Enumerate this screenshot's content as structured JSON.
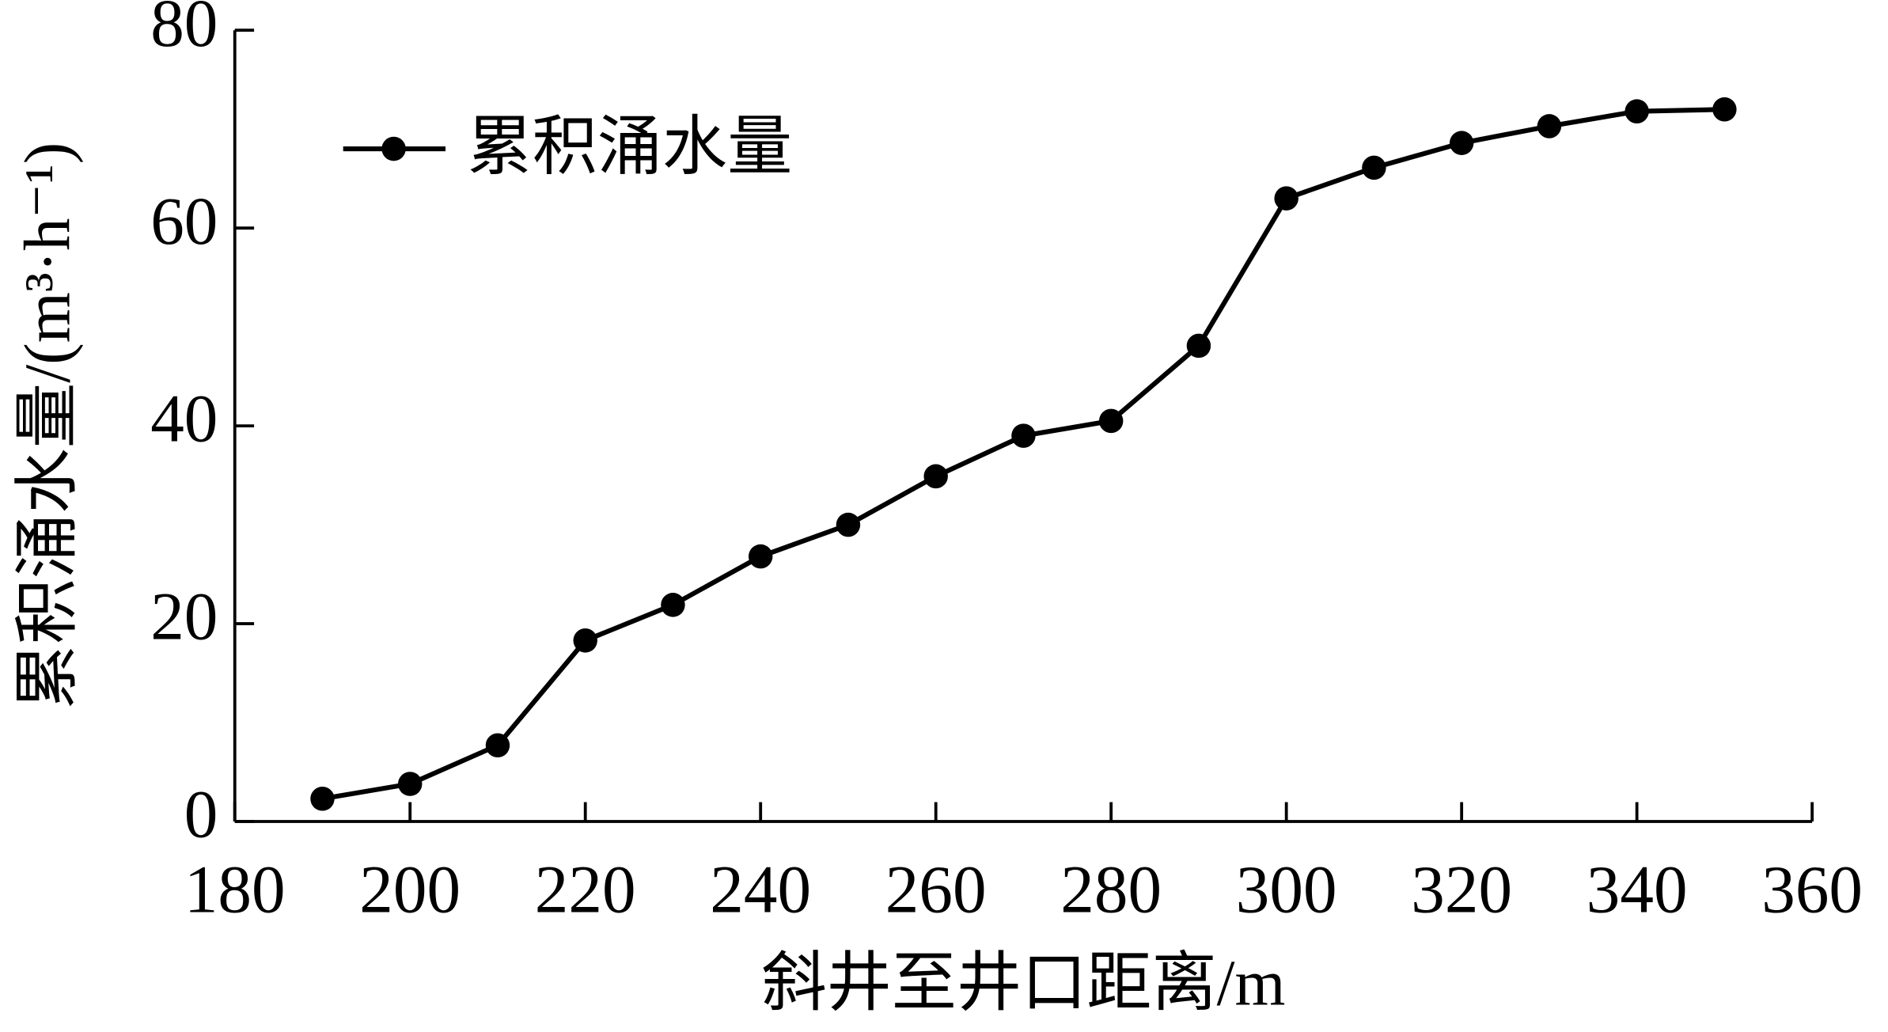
{
  "chart_data": {
    "type": "line",
    "x_label": "斜井至井口距离/m",
    "y_label": "累积涌水量/(m³·h⁻¹)",
    "x": [
      190,
      200,
      210,
      220,
      230,
      240,
      250,
      260,
      270,
      280,
      290,
      300,
      310,
      320,
      330,
      340,
      350
    ],
    "series": [
      {
        "name": "累积涌水量",
        "color": "#000000",
        "values": [
          2.3,
          3.8,
          7.7,
          18.3,
          21.9,
          26.8,
          30.0,
          34.9,
          39.0,
          40.5,
          48.1,
          63.0,
          66.1,
          68.6,
          70.3,
          71.8,
          72.0
        ]
      }
    ],
    "xlim": [
      180,
      360
    ],
    "xticks": [
      180,
      200,
      220,
      240,
      260,
      280,
      300,
      320,
      340,
      360
    ],
    "ylim": [
      0,
      80
    ],
    "yticks": [
      0,
      20,
      40,
      60,
      80
    ],
    "legend": "upper-left"
  }
}
